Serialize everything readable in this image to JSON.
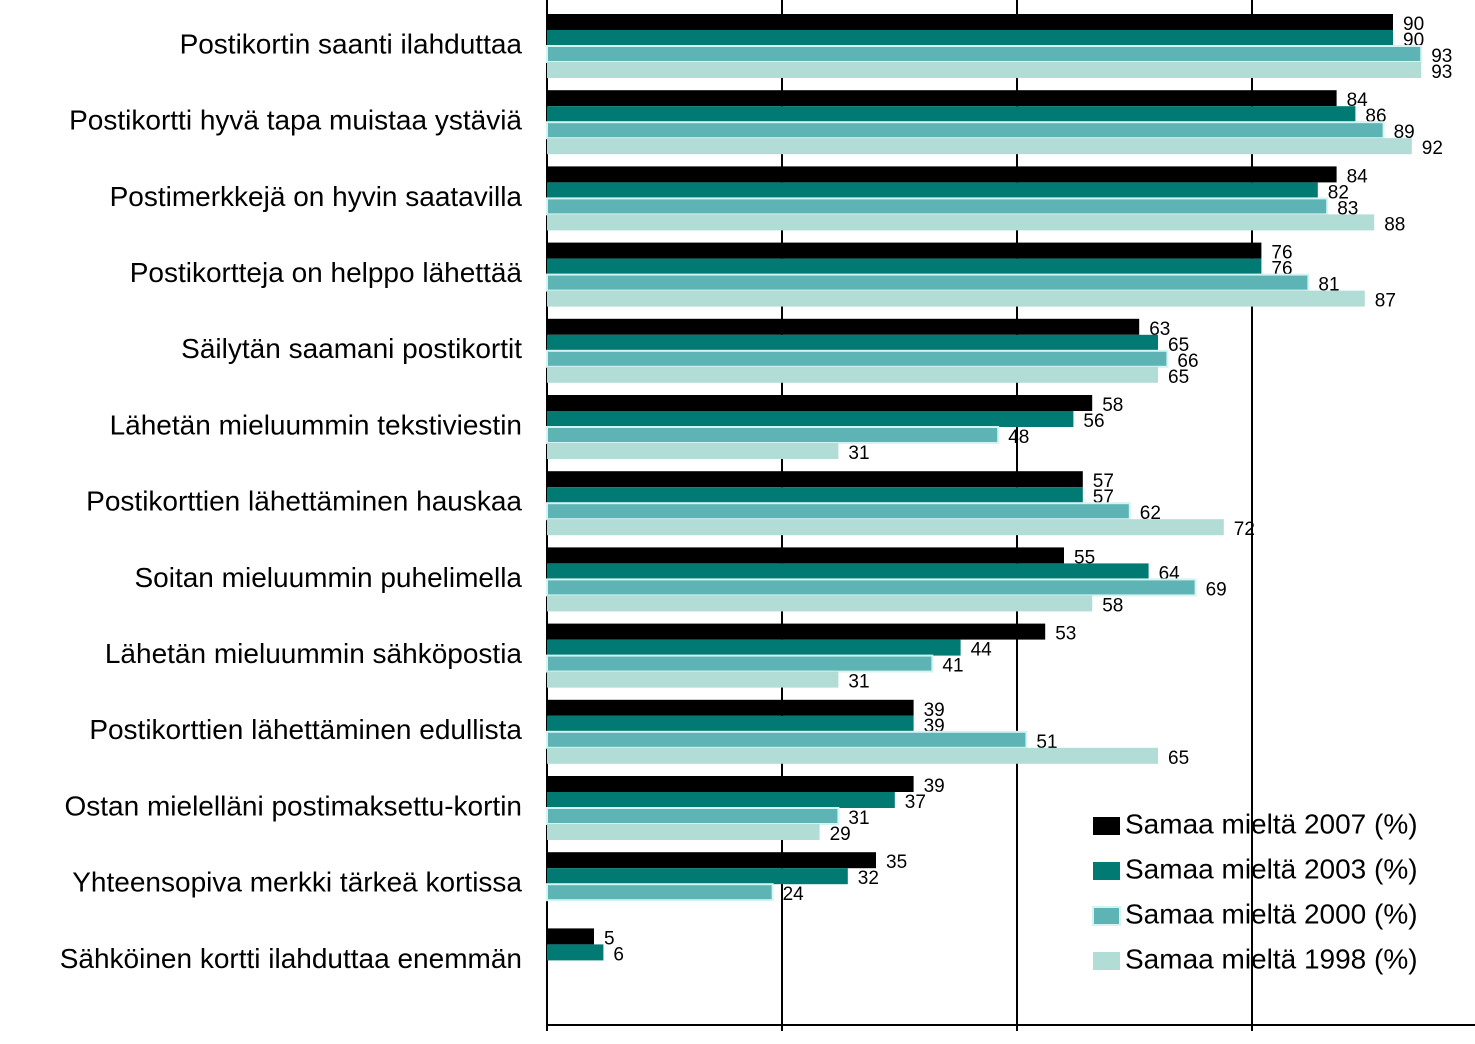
{
  "chart_data": {
    "type": "hbar",
    "categories": [
      "Postikortin saanti ilahduttaa",
      "Postikortti hyvä tapa muistaa ystäviä",
      "Postimerkkejä on hyvin saatavilla",
      "Postikortteja on helppo lähettää",
      "Säilytän saamani postikortit",
      "Lähetän mieluummin tekstiviestin",
      "Postikorttien lähettäminen hauskaa",
      "Soitan mieluummin puhelimella",
      "Lähetän mieluummin sähköpostia",
      "Postikorttien lähettäminen edullista",
      "Ostan mielelläni postimaksettu-kortin",
      "Yhteensopiva merkki tärkeä kortissa",
      "Sähköinen kortti ilahduttaa enemmän"
    ],
    "series": [
      {
        "name": "Samaa mieltä 2007 (%)",
        "color": "#000000",
        "values": [
          90,
          84,
          84,
          76,
          63,
          58,
          57,
          55,
          53,
          39,
          39,
          35,
          5
        ]
      },
      {
        "name": "Samaa mieltä 2003 (%)",
        "color": "#007a73",
        "values": [
          90,
          86,
          82,
          76,
          65,
          56,
          57,
          64,
          44,
          39,
          37,
          32,
          6
        ]
      },
      {
        "name": "Samaa mieltä 2000 (%)",
        "color": "#5eb3b5",
        "values": [
          93,
          89,
          83,
          81,
          66,
          48,
          62,
          69,
          41,
          51,
          31,
          24,
          null
        ]
      },
      {
        "name": "Samaa mieltä 1998 (%)",
        "color": "#b2dcd6",
        "values": [
          93,
          92,
          88,
          87,
          65,
          31,
          72,
          58,
          31,
          65,
          29,
          null,
          null
        ]
      }
    ],
    "xlim": [
      0,
      100
    ],
    "xticks": [
      0,
      25,
      50,
      75,
      100
    ],
    "grid": true,
    "legend": "bottom-right"
  }
}
